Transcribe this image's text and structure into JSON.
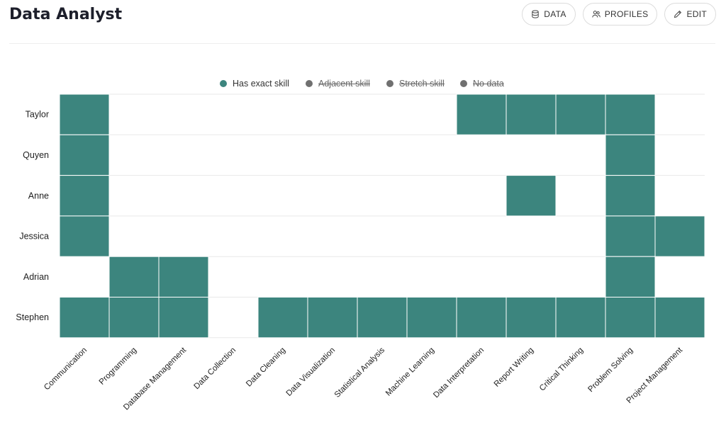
{
  "page": {
    "title": "Data Analyst"
  },
  "toolbar": {
    "data_label": "DATA",
    "profiles_label": "PROFILES",
    "edit_label": "EDIT"
  },
  "legend": {
    "items": [
      {
        "label": "Has exact skill",
        "color": "#3c857e",
        "enabled": true
      },
      {
        "label": "Adjacent skill",
        "color": "#707070",
        "enabled": false
      },
      {
        "label": "Stretch skill",
        "color": "#707070",
        "enabled": false
      },
      {
        "label": "No data",
        "color": "#707070",
        "enabled": false
      }
    ]
  },
  "chart_data": {
    "type": "heatmap",
    "title": "",
    "xlabel": "",
    "ylabel": "",
    "grid": true,
    "legend_position": "top",
    "fill_color": "#3c857e",
    "rows": [
      "Taylor",
      "Quyen",
      "Anne",
      "Jessica",
      "Adrian",
      "Stephen"
    ],
    "columns": [
      "Communication",
      "Programming",
      "Database Management",
      "Data Collection",
      "Data Cleaning",
      "Data Visualization",
      "Statistical Analysis",
      "Machine Learning",
      "Data Interpretation",
      "Report Writing",
      "Critical Thinking",
      "Problem Solving",
      "Project Management"
    ],
    "values": [
      [
        1,
        0,
        0,
        0,
        0,
        0,
        0,
        0,
        1,
        1,
        1,
        1,
        0
      ],
      [
        1,
        0,
        0,
        0,
        0,
        0,
        0,
        0,
        0,
        0,
        0,
        1,
        0
      ],
      [
        1,
        0,
        0,
        0,
        0,
        0,
        0,
        0,
        0,
        1,
        0,
        1,
        0
      ],
      [
        1,
        0,
        0,
        0,
        0,
        0,
        0,
        0,
        0,
        0,
        0,
        1,
        1
      ],
      [
        0,
        1,
        1,
        0,
        0,
        0,
        0,
        0,
        0,
        0,
        0,
        1,
        0
      ],
      [
        1,
        1,
        1,
        0,
        1,
        1,
        1,
        1,
        1,
        1,
        1,
        1,
        1
      ]
    ]
  }
}
